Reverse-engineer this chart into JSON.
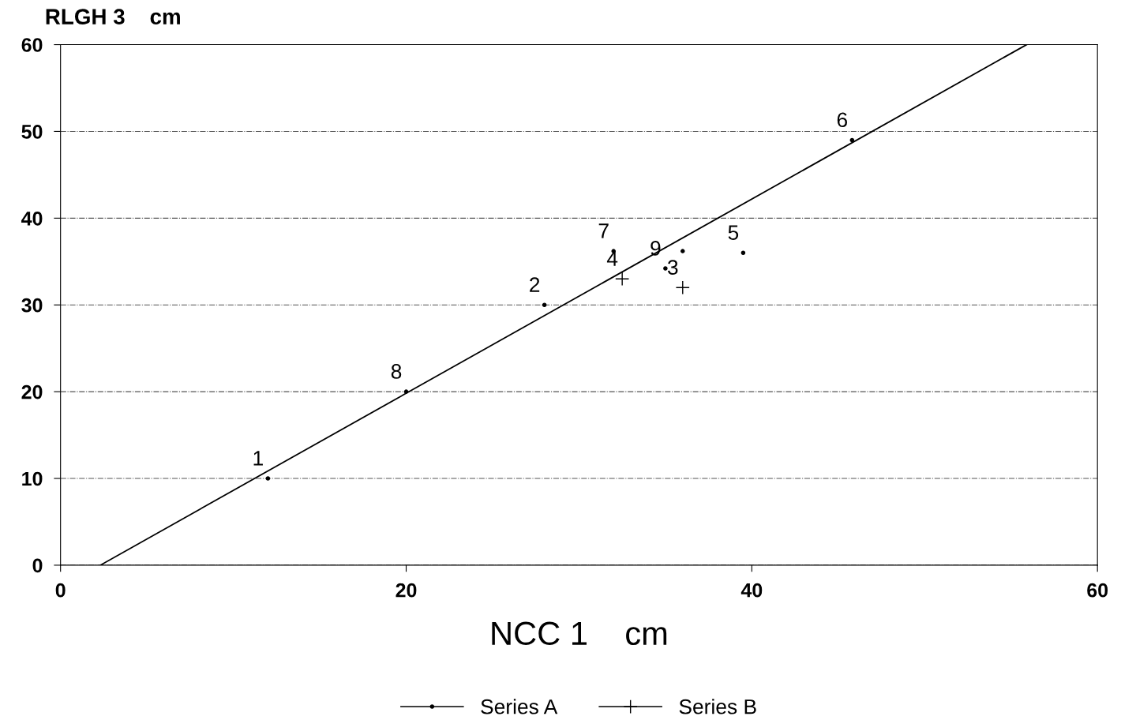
{
  "chart_data": {
    "type": "scatter",
    "xlabel": "NCC 1    cm",
    "ylabel": "RLGH 3    cm",
    "xlim": [
      0,
      60
    ],
    "ylim": [
      0,
      60
    ],
    "xticks": [
      0,
      20,
      40,
      60
    ],
    "yticks": [
      0,
      10,
      20,
      30,
      40,
      50,
      60
    ],
    "grid": "y",
    "legend": "bottom",
    "series": [
      {
        "name": "Series A",
        "color": "#000000",
        "marker": "circle",
        "x": [
          12,
          20,
          28,
          32,
          35,
          36,
          39.5,
          45.8
        ],
        "values": [
          10,
          20,
          30,
          36.2,
          34.2,
          36.2,
          36,
          49
        ]
      },
      {
        "name": "Series B",
        "color": "#000000",
        "marker": "cross",
        "x": [
          32.5,
          36
        ],
        "values": [
          33,
          32
        ]
      },
      {
        "type": "line",
        "color": "#000000",
        "marker": "none",
        "x": [
          2.3,
          55.9
        ],
        "values": [
          0,
          60
        ]
      }
    ],
    "annotations": [
      {
        "text": "1",
        "x": 12,
        "y": 10
      },
      {
        "text": "2",
        "x": 28,
        "y": 30
      },
      {
        "text": "3",
        "x": 36,
        "y": 32
      },
      {
        "text": "4",
        "x": 32.5,
        "y": 33
      },
      {
        "text": "5",
        "x": 39.5,
        "y": 36
      },
      {
        "text": "6",
        "x": 45.8,
        "y": 49
      },
      {
        "text": "7",
        "x": 32,
        "y": 36.2
      },
      {
        "text": "8",
        "x": 20,
        "y": 20
      },
      {
        "text": "9",
        "x": 35,
        "y": 34.2
      }
    ]
  }
}
